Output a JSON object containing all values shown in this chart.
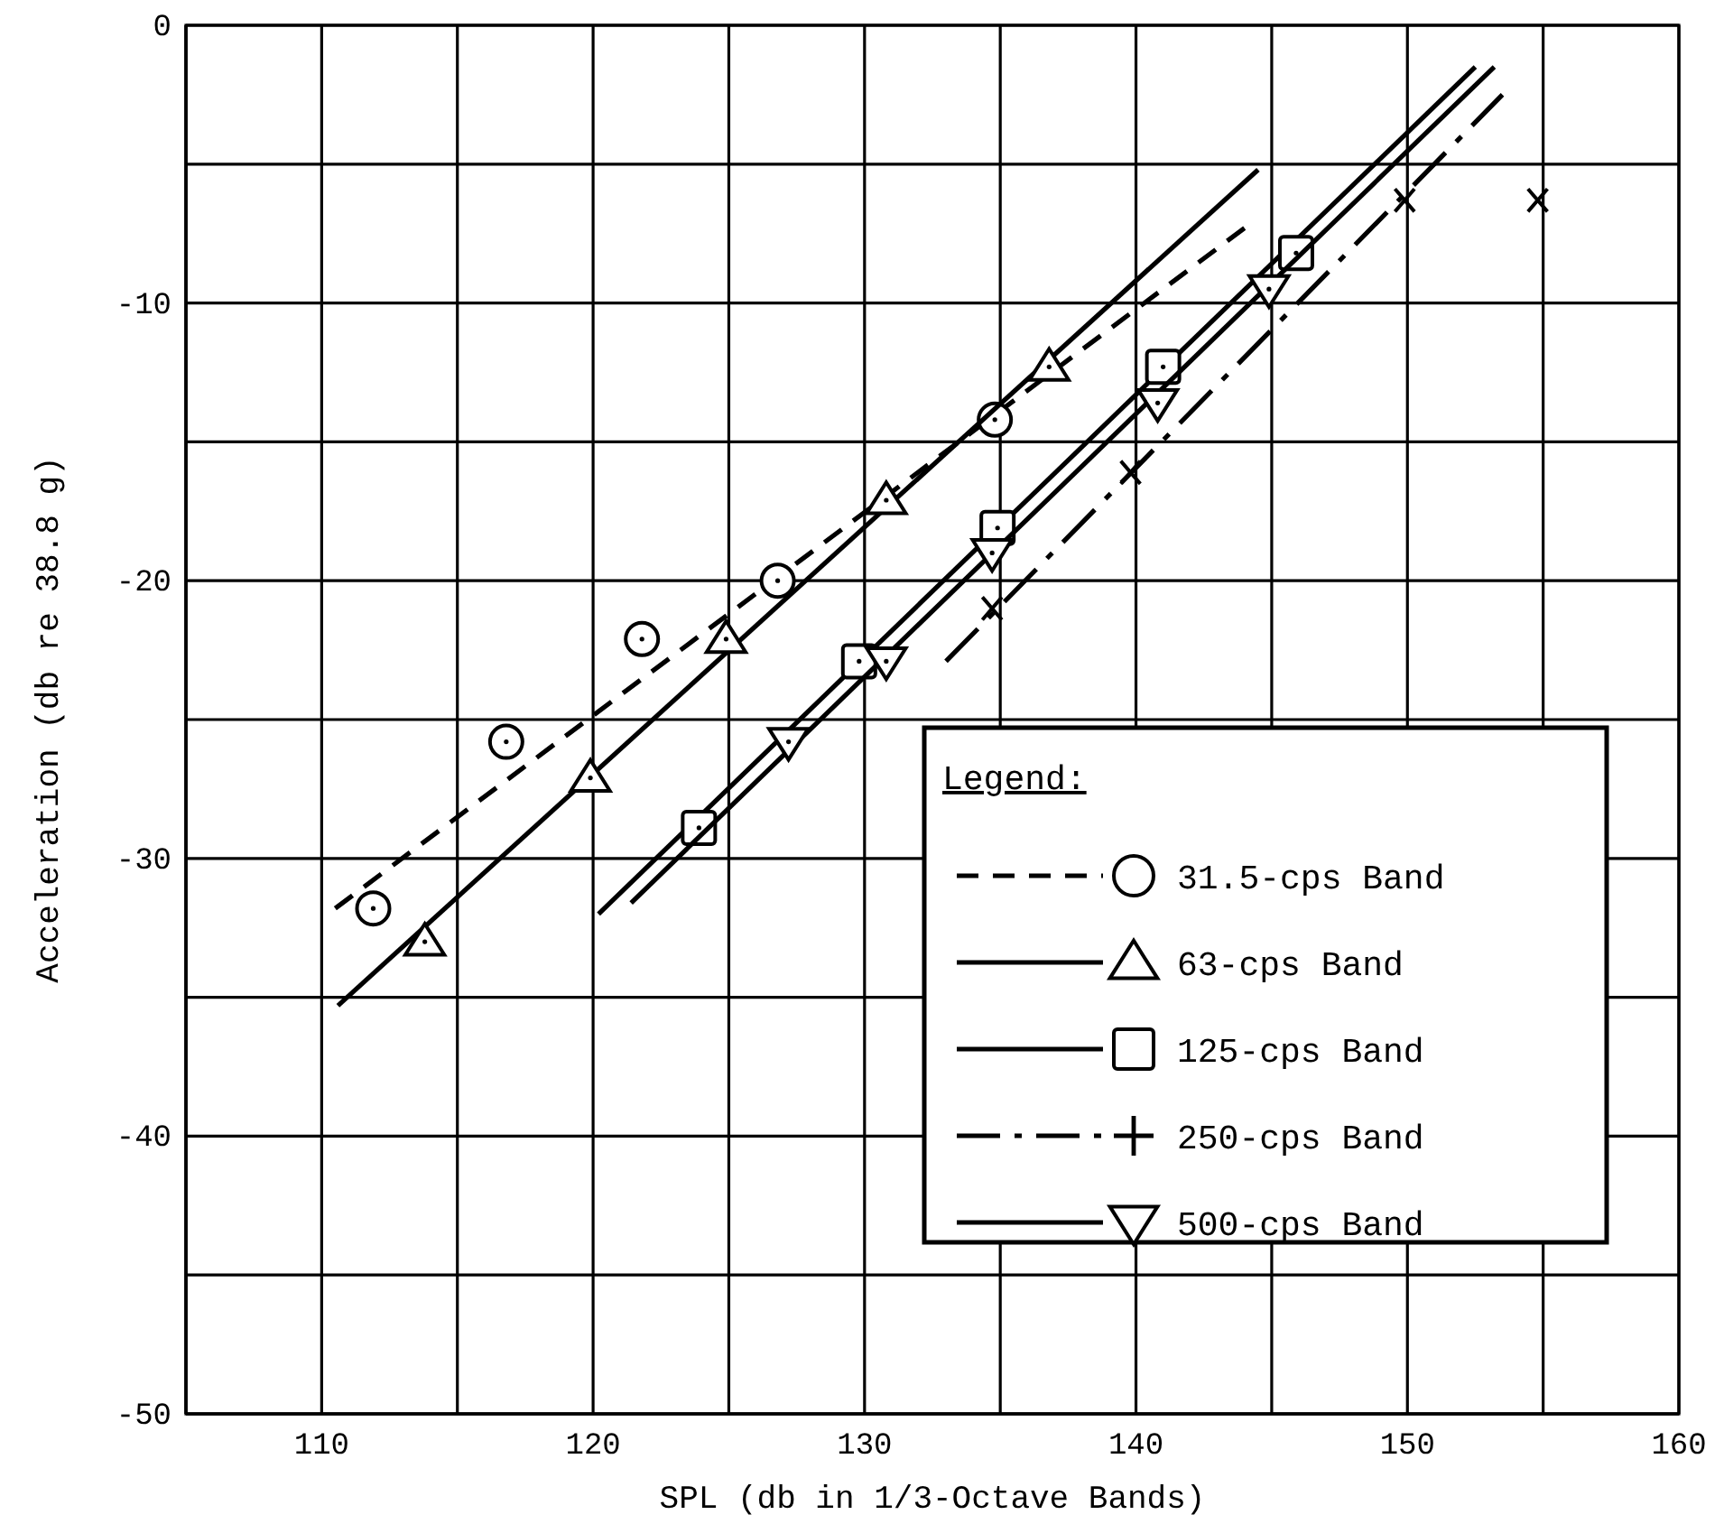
{
  "chart_data": {
    "type": "scatter",
    "xlabel": "SPL (db in 1/3-Octave Bands)",
    "ylabel": "Acceleration (db re 38.8 g)",
    "xlim": [
      105,
      160
    ],
    "ylim": [
      -50,
      0
    ],
    "xticks": [
      {
        "value": 105,
        "label": null
      },
      110,
      {
        "value": 115,
        "label": null
      },
      120,
      {
        "value": 125,
        "label": null
      },
      130,
      {
        "value": 135,
        "label": null
      },
      140,
      {
        "value": 145,
        "label": null
      },
      150,
      {
        "value": 155,
        "label": null
      },
      160
    ],
    "yticks": [
      -50,
      {
        "value": -45,
        "label": null
      },
      -40,
      {
        "value": -35,
        "label": null
      },
      -30,
      {
        "value": -25,
        "label": null
      },
      -20,
      {
        "value": -15,
        "label": null
      },
      -10,
      {
        "value": -5,
        "label": null
      },
      0
    ],
    "grid": true,
    "legend": "bottom right",
    "legend_title": "Legend:",
    "series": [
      {
        "type": "line",
        "name": "31.5-cps Band",
        "color": "#000000",
        "line_style": "dashed",
        "x": [
          110.5,
          144
        ],
        "values": [
          -31.8,
          -7.3
        ]
      },
      {
        "type": "scatter",
        "color": "#000000",
        "marker": "circle",
        "x": [
          111.9,
          116.8,
          121.8,
          126.8,
          134.8
        ],
        "values": [
          -31.8,
          -25.8,
          -22.1,
          -20.0,
          -14.2
        ]
      },
      {
        "type": "line",
        "name": "63-cps Band",
        "color": "#000000",
        "line_style": "solid",
        "x": [
          110.6,
          144.5
        ],
        "values": [
          -35.3,
          -5.2
        ]
      },
      {
        "type": "scatter",
        "color": "#000000",
        "marker": "triangle",
        "x": [
          113.8,
          119.9,
          124.9,
          130.8,
          136.8
        ],
        "values": [
          -33.0,
          -27.1,
          -22.1,
          -17.1,
          -12.3
        ]
      },
      {
        "type": "line",
        "name": "125-cps Band",
        "color": "#000000",
        "line_style": "solid",
        "x": [
          120.2,
          152.5
        ],
        "values": [
          -32.0,
          -1.5
        ]
      },
      {
        "type": "scatter",
        "color": "#000000",
        "marker": "square",
        "x": [
          123.9,
          129.8,
          134.9,
          141.0,
          145.9
        ],
        "values": [
          -28.9,
          -22.9,
          -18.1,
          -12.3,
          -8.2
        ]
      },
      {
        "type": "line",
        "name": "250-cps Band",
        "color": "#000000",
        "line_style": "dashdot",
        "x": [
          133.0,
          153.5
        ],
        "values": [
          -22.9,
          -2.5
        ]
      },
      {
        "type": "scatter",
        "color": "#000000",
        "marker": "cross",
        "x": [
          134.7,
          139.8,
          149.9,
          154.8
        ],
        "values": [
          -21.0,
          -16.1,
          -6.3,
          -6.3
        ]
      },
      {
        "type": "line",
        "name": "500-cps Band",
        "color": "#000000",
        "line_style": "solid",
        "x": [
          121.4,
          153.2
        ],
        "values": [
          -31.6,
          -1.5
        ]
      },
      {
        "type": "scatter",
        "color": "#000000",
        "marker": "triangle-down",
        "x": [
          127.2,
          130.8,
          134.7,
          140.8,
          144.9
        ],
        "values": [
          -25.8,
          -22.9,
          -19.0,
          -13.6,
          -9.5
        ]
      }
    ]
  }
}
